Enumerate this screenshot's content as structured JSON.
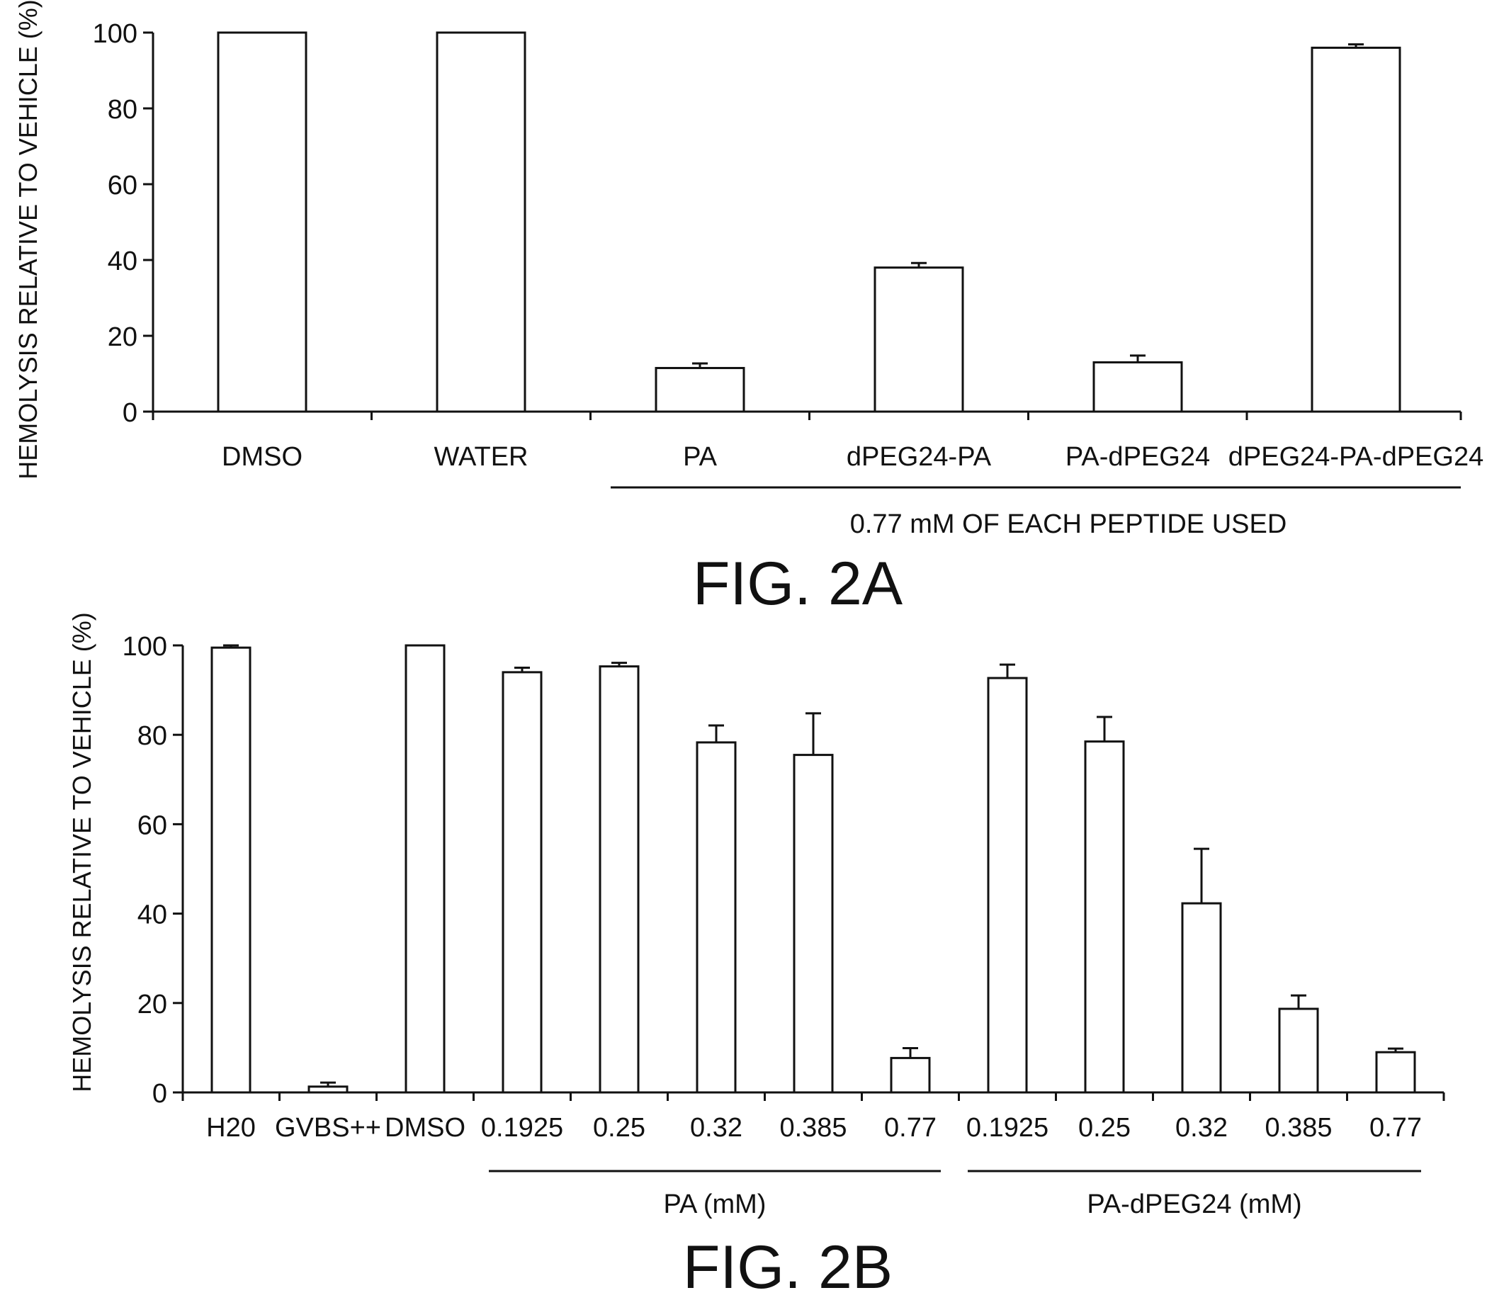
{
  "chart_data": [
    {
      "type": "bar",
      "ylabel": "HEMOLYSIS RELATIVE TO VEHICLE (%)",
      "ylim": [
        0,
        100
      ],
      "yticks": [
        0,
        20,
        40,
        60,
        80,
        100
      ],
      "categories": [
        "DMSO",
        "WATER",
        "PA",
        "dPEG24-PA",
        "PA-dPEG24",
        "dPEG24-PA-dPEG24"
      ],
      "values": [
        100,
        100,
        11.5,
        38,
        13,
        96
      ],
      "errors": [
        0,
        0,
        1.2,
        1.2,
        1.8,
        0.9
      ],
      "groups": [
        {
          "label": "0.77 mM OF EACH PEPTIDE USED",
          "categories": [
            "PA",
            "dPEG24-PA",
            "PA-dPEG24",
            "dPEG24-PA-dPEG24"
          ]
        }
      ],
      "caption": "FIG. 2A",
      "grid": false
    },
    {
      "type": "bar",
      "ylabel": "HEMOLYSIS RELATIVE TO VEHICLE (%)",
      "ylim": [
        0,
        100
      ],
      "yticks": [
        0,
        20,
        40,
        60,
        80,
        100
      ],
      "categories": [
        "H20",
        "GVBS++",
        "DMSO",
        "0.1925",
        "0.25",
        "0.32",
        "0.385",
        "0.77",
        "0.1925",
        "0.25",
        "0.32",
        "0.385",
        "0.77"
      ],
      "values": [
        99.5,
        1.3,
        100,
        94,
        95.3,
        78.3,
        75.5,
        7.7,
        92.7,
        78.5,
        42.3,
        18.7,
        9
      ],
      "errors": [
        0.5,
        0.9,
        0,
        1,
        0.8,
        3.8,
        9.3,
        2.2,
        3,
        5.5,
        12.2,
        3,
        0.8
      ],
      "groups": [
        {
          "label": "PA (mM)",
          "categories": [
            "0.1925",
            "0.25",
            "0.32",
            "0.385",
            "0.77"
          ]
        },
        {
          "label": "PA-dPEG24 (mM)",
          "categories": [
            "0.1925",
            "0.25",
            "0.32",
            "0.385",
            "0.77"
          ]
        }
      ],
      "caption": "FIG. 2B",
      "grid": false
    }
  ]
}
